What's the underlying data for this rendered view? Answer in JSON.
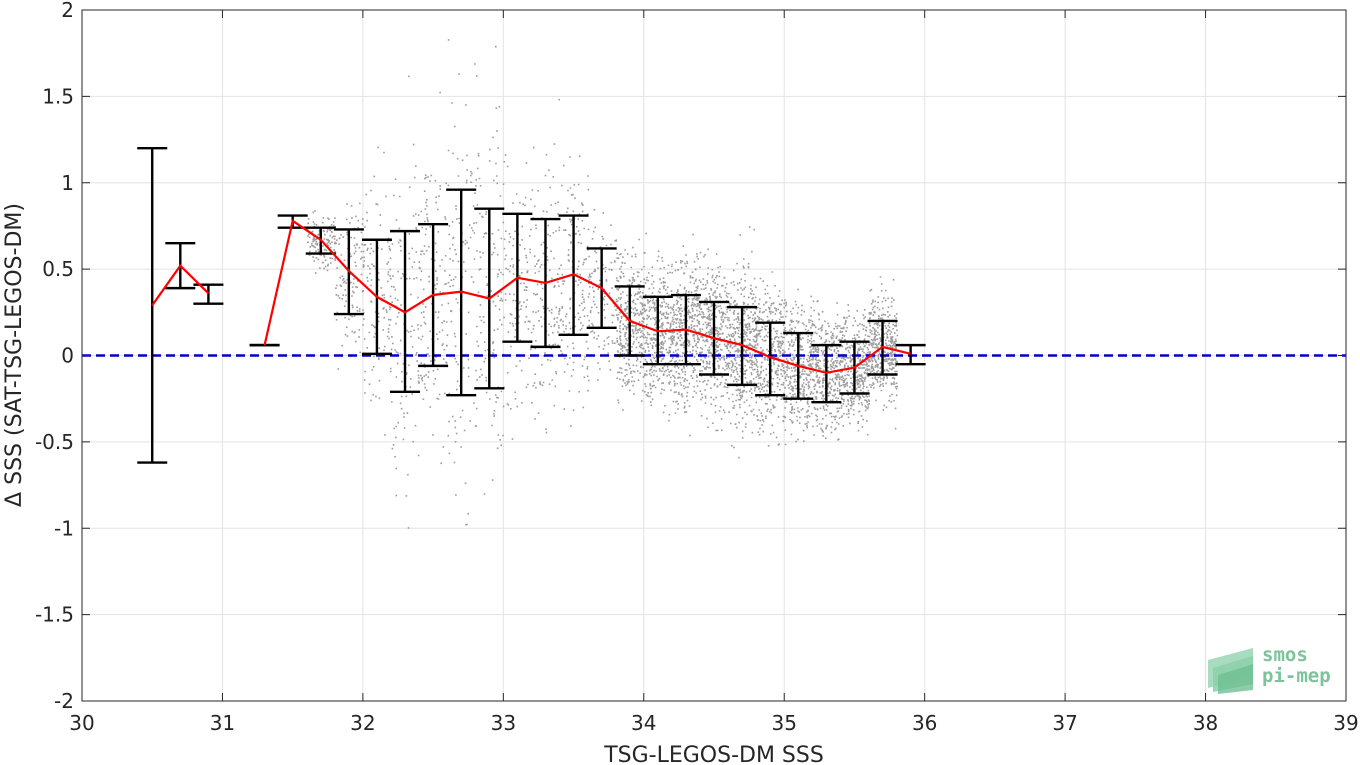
{
  "chart_data": {
    "type": "scatter",
    "xlabel": "TSG-LEGOS-DM SSS",
    "ylabel": "Δ SSS (SAT-TSG-LEGOS-DM)",
    "xlim": [
      30,
      39
    ],
    "ylim": [
      -2,
      2
    ],
    "xticks": [
      "30",
      "31",
      "32",
      "33",
      "34",
      "35",
      "36",
      "37",
      "38",
      "39"
    ],
    "yticks": [
      "-2",
      "-1.5",
      "-1",
      "-0.5",
      "0",
      "0.5",
      "1",
      "1.5",
      "2"
    ],
    "grid": true,
    "reference_line": {
      "y": 0,
      "color": "#0000cc",
      "style": "dashed"
    },
    "scatter_color": "#8c8c8c",
    "mean_line_color": "#ff0000",
    "errorbar_color": "#000000",
    "binned_stats": [
      {
        "x": 30.5,
        "mean": 0.29,
        "low": -0.62,
        "high": 1.2
      },
      {
        "x": 30.7,
        "mean": 0.52,
        "low": 0.39,
        "high": 0.65
      },
      {
        "x": 30.9,
        "mean": 0.36,
        "low": 0.3,
        "high": 0.41
      },
      {
        "x": 31.3,
        "mean": 0.06,
        "low": 0.06,
        "high": 0.06
      },
      {
        "x": 31.5,
        "mean": 0.78,
        "low": 0.74,
        "high": 0.81
      },
      {
        "x": 31.7,
        "mean": 0.67,
        "low": 0.59,
        "high": 0.74
      },
      {
        "x": 31.9,
        "mean": 0.49,
        "low": 0.24,
        "high": 0.73
      },
      {
        "x": 32.1,
        "mean": 0.34,
        "low": 0.01,
        "high": 0.67
      },
      {
        "x": 32.3,
        "mean": 0.25,
        "low": -0.21,
        "high": 0.72
      },
      {
        "x": 32.5,
        "mean": 0.35,
        "low": -0.06,
        "high": 0.76
      },
      {
        "x": 32.7,
        "mean": 0.37,
        "low": -0.23,
        "high": 0.96
      },
      {
        "x": 32.9,
        "mean": 0.33,
        "low": -0.19,
        "high": 0.85
      },
      {
        "x": 33.1,
        "mean": 0.45,
        "low": 0.08,
        "high": 0.82
      },
      {
        "x": 33.3,
        "mean": 0.42,
        "low": 0.05,
        "high": 0.79
      },
      {
        "x": 33.5,
        "mean": 0.47,
        "low": 0.12,
        "high": 0.81
      },
      {
        "x": 33.7,
        "mean": 0.39,
        "low": 0.16,
        "high": 0.62
      },
      {
        "x": 33.9,
        "mean": 0.2,
        "low": 0.0,
        "high": 0.4
      },
      {
        "x": 34.1,
        "mean": 0.14,
        "low": -0.05,
        "high": 0.34
      },
      {
        "x": 34.3,
        "mean": 0.15,
        "low": -0.05,
        "high": 0.35
      },
      {
        "x": 34.5,
        "mean": 0.1,
        "low": -0.11,
        "high": 0.31
      },
      {
        "x": 34.7,
        "mean": 0.06,
        "low": -0.17,
        "high": 0.28
      },
      {
        "x": 34.9,
        "mean": -0.01,
        "low": -0.23,
        "high": 0.19
      },
      {
        "x": 35.1,
        "mean": -0.06,
        "low": -0.25,
        "high": 0.13
      },
      {
        "x": 35.3,
        "mean": -0.1,
        "low": -0.27,
        "high": 0.06
      },
      {
        "x": 35.5,
        "mean": -0.07,
        "low": -0.22,
        "high": 0.08
      },
      {
        "x": 35.7,
        "mean": 0.05,
        "low": -0.11,
        "high": 0.2
      },
      {
        "x": 35.9,
        "mean": 0.01,
        "low": -0.05,
        "high": 0.06
      }
    ]
  },
  "logo": {
    "line1": "smos",
    "line2": "pi-mep"
  }
}
